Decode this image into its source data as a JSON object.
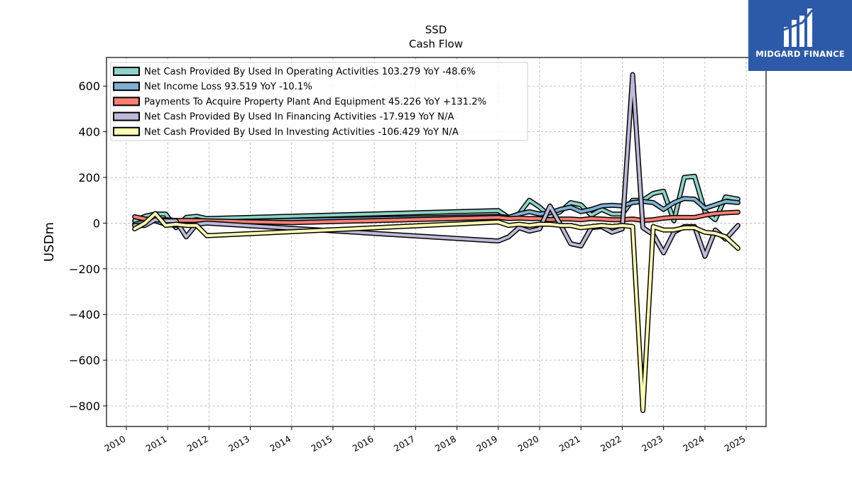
{
  "logo": {
    "text": "MIDGARD FINANCE"
  },
  "colors": {
    "operating": "#8dd3c7",
    "net_income": "#80b1d3",
    "capex": "#fb8072",
    "financing": "#bebada",
    "investing": "#ffffb3",
    "logo_bg": "#2d5aa8"
  },
  "chart_data": {
    "type": "line",
    "title": "SSD",
    "subtitle": "Cash Flow",
    "xlabel": "",
    "ylabel": "USDm",
    "xlim": [
      2009.52,
      2025.48
    ],
    "ylim": [
      -890,
      725
    ],
    "yticks": [
      600,
      400,
      200,
      0,
      -200,
      -400,
      -600,
      -800
    ],
    "ytick_labels": [
      "600",
      "400",
      "200",
      "0",
      "−200",
      "−400",
      "−600",
      "−800"
    ],
    "xticks": [
      2010,
      2011,
      2012,
      2013,
      2014,
      2015,
      2016,
      2017,
      2018,
      2019,
      2020,
      2021,
      2022,
      2023,
      2024,
      2025
    ],
    "xtick_labels": [
      "2010",
      "2011",
      "2012",
      "2013",
      "2014",
      "2015",
      "2016",
      "2017",
      "2018",
      "2019",
      "2020",
      "2021",
      "2022",
      "2023",
      "2024",
      "2025"
    ],
    "grid": true,
    "legend_position": "top-left",
    "series": [
      {
        "name": "Net Cash Provided By Used In Operating Activities  103.279 YoY -48.6%",
        "color": "#8dd3c7",
        "points": [
          [
            2010.2,
            10
          ],
          [
            2010.45,
            30
          ],
          [
            2010.7,
            40
          ],
          [
            2010.95,
            40
          ],
          [
            2011.2,
            -20
          ],
          [
            2011.45,
            25
          ],
          [
            2011.7,
            30
          ],
          [
            2011.95,
            20
          ],
          [
            2019.0,
            55
          ],
          [
            2019.25,
            25
          ],
          [
            2019.5,
            40
          ],
          [
            2019.75,
            100
          ],
          [
            2020.0,
            70
          ],
          [
            2020.25,
            30
          ],
          [
            2020.5,
            50
          ],
          [
            2020.75,
            90
          ],
          [
            2021.0,
            80
          ],
          [
            2021.25,
            35
          ],
          [
            2021.5,
            60
          ],
          [
            2021.75,
            40
          ],
          [
            2022.0,
            40
          ],
          [
            2022.25,
            100
          ],
          [
            2022.5,
            100
          ],
          [
            2022.75,
            130
          ],
          [
            2023.0,
            140
          ],
          [
            2023.25,
            10
          ],
          [
            2023.5,
            200
          ],
          [
            2023.75,
            205
          ],
          [
            2024.0,
            50
          ],
          [
            2024.25,
            15
          ],
          [
            2024.5,
            115
          ],
          [
            2024.8,
            105
          ]
        ]
      },
      {
        "name": "Net Income Loss  93.519 YoY -10.1%",
        "color": "#80b1d3",
        "points": [
          [
            2010.2,
            -5
          ],
          [
            2010.45,
            5
          ],
          [
            2010.7,
            10
          ],
          [
            2010.95,
            -5
          ],
          [
            2011.2,
            -10
          ],
          [
            2011.45,
            5
          ],
          [
            2011.7,
            15
          ],
          [
            2011.95,
            5
          ],
          [
            2019.0,
            30
          ],
          [
            2019.25,
            25
          ],
          [
            2019.5,
            40
          ],
          [
            2019.75,
            50
          ],
          [
            2020.0,
            40
          ],
          [
            2020.25,
            45
          ],
          [
            2020.5,
            60
          ],
          [
            2020.75,
            70
          ],
          [
            2021.0,
            50
          ],
          [
            2021.25,
            60
          ],
          [
            2021.5,
            75
          ],
          [
            2021.75,
            78
          ],
          [
            2022.0,
            75
          ],
          [
            2022.25,
            90
          ],
          [
            2022.5,
            95
          ],
          [
            2022.75,
            90
          ],
          [
            2023.0,
            60
          ],
          [
            2023.25,
            90
          ],
          [
            2023.5,
            108
          ],
          [
            2023.75,
            105
          ],
          [
            2024.0,
            65
          ],
          [
            2024.25,
            80
          ],
          [
            2024.5,
            95
          ],
          [
            2024.8,
            90
          ]
        ]
      },
      {
        "name": "Payments To Acquire Property Plant And Equipment  45.226 YoY +131.2%",
        "color": "#fb8072",
        "points": [
          [
            2010.2,
            28
          ],
          [
            2010.45,
            18
          ],
          [
            2010.7,
            15
          ],
          [
            2010.95,
            15
          ],
          [
            2011.2,
            12
          ],
          [
            2011.45,
            12
          ],
          [
            2011.7,
            12
          ],
          [
            2011.95,
            10
          ],
          [
            2014.0,
            2
          ],
          [
            2019.0,
            25
          ],
          [
            2019.25,
            20
          ],
          [
            2019.5,
            22
          ],
          [
            2019.75,
            20
          ],
          [
            2020.0,
            20
          ],
          [
            2020.25,
            15
          ],
          [
            2020.5,
            18
          ],
          [
            2020.75,
            18
          ],
          [
            2021.0,
            15
          ],
          [
            2021.25,
            20
          ],
          [
            2021.5,
            18
          ],
          [
            2021.75,
            15
          ],
          [
            2022.0,
            15
          ],
          [
            2022.25,
            18
          ],
          [
            2022.5,
            12
          ],
          [
            2022.75,
            15
          ],
          [
            2023.0,
            22
          ],
          [
            2023.25,
            25
          ],
          [
            2023.5,
            25
          ],
          [
            2023.75,
            25
          ],
          [
            2024.0,
            35
          ],
          [
            2024.25,
            42
          ],
          [
            2024.5,
            45
          ],
          [
            2024.8,
            48
          ]
        ]
      },
      {
        "name": "Net Cash Provided By Used In Financing Activities  -17.919 YoY N/A",
        "color": "#bebada",
        "points": [
          [
            2010.2,
            -10
          ],
          [
            2010.45,
            -10
          ],
          [
            2010.7,
            15
          ],
          [
            2010.95,
            10
          ],
          [
            2011.2,
            10
          ],
          [
            2011.45,
            -60
          ],
          [
            2011.7,
            -5
          ],
          [
            2011.95,
            0
          ],
          [
            2019.0,
            -78
          ],
          [
            2019.25,
            -60
          ],
          [
            2019.5,
            -20
          ],
          [
            2019.75,
            -35
          ],
          [
            2020.0,
            -25
          ],
          [
            2020.25,
            75
          ],
          [
            2020.5,
            -5
          ],
          [
            2020.75,
            -90
          ],
          [
            2021.0,
            -100
          ],
          [
            2021.25,
            -20
          ],
          [
            2021.5,
            -15
          ],
          [
            2021.75,
            -40
          ],
          [
            2022.0,
            -25
          ],
          [
            2022.25,
            650
          ],
          [
            2022.5,
            -20
          ],
          [
            2022.75,
            -50
          ],
          [
            2023.0,
            -130
          ],
          [
            2023.25,
            -40
          ],
          [
            2023.5,
            -15
          ],
          [
            2023.75,
            -15
          ],
          [
            2024.0,
            -145
          ],
          [
            2024.25,
            -30
          ],
          [
            2024.5,
            -70
          ],
          [
            2024.8,
            -10
          ]
        ]
      },
      {
        "name": "Net Cash Provided By Used In Investing Activities  -106.429 YoY N/A",
        "color": "#ffffb3",
        "points": [
          [
            2010.2,
            -25
          ],
          [
            2010.45,
            0
          ],
          [
            2010.7,
            42
          ],
          [
            2010.95,
            -10
          ],
          [
            2011.2,
            -5
          ],
          [
            2011.45,
            -10
          ],
          [
            2011.7,
            -10
          ],
          [
            2011.95,
            -55
          ],
          [
            2019.0,
            5
          ],
          [
            2019.25,
            -10
          ],
          [
            2019.5,
            -5
          ],
          [
            2019.75,
            -10
          ],
          [
            2020.0,
            -5
          ],
          [
            2020.25,
            -5
          ],
          [
            2020.5,
            -10
          ],
          [
            2020.75,
            -10
          ],
          [
            2021.0,
            -20
          ],
          [
            2021.25,
            -15
          ],
          [
            2021.5,
            -10
          ],
          [
            2021.75,
            -15
          ],
          [
            2022.0,
            -10
          ],
          [
            2022.25,
            -15
          ],
          [
            2022.5,
            -820
          ],
          [
            2022.75,
            -15
          ],
          [
            2023.0,
            -30
          ],
          [
            2023.25,
            -30
          ],
          [
            2023.5,
            -20
          ],
          [
            2023.75,
            -20
          ],
          [
            2024.0,
            -40
          ],
          [
            2024.25,
            -45
          ],
          [
            2024.5,
            -60
          ],
          [
            2024.8,
            -110
          ]
        ]
      }
    ]
  }
}
